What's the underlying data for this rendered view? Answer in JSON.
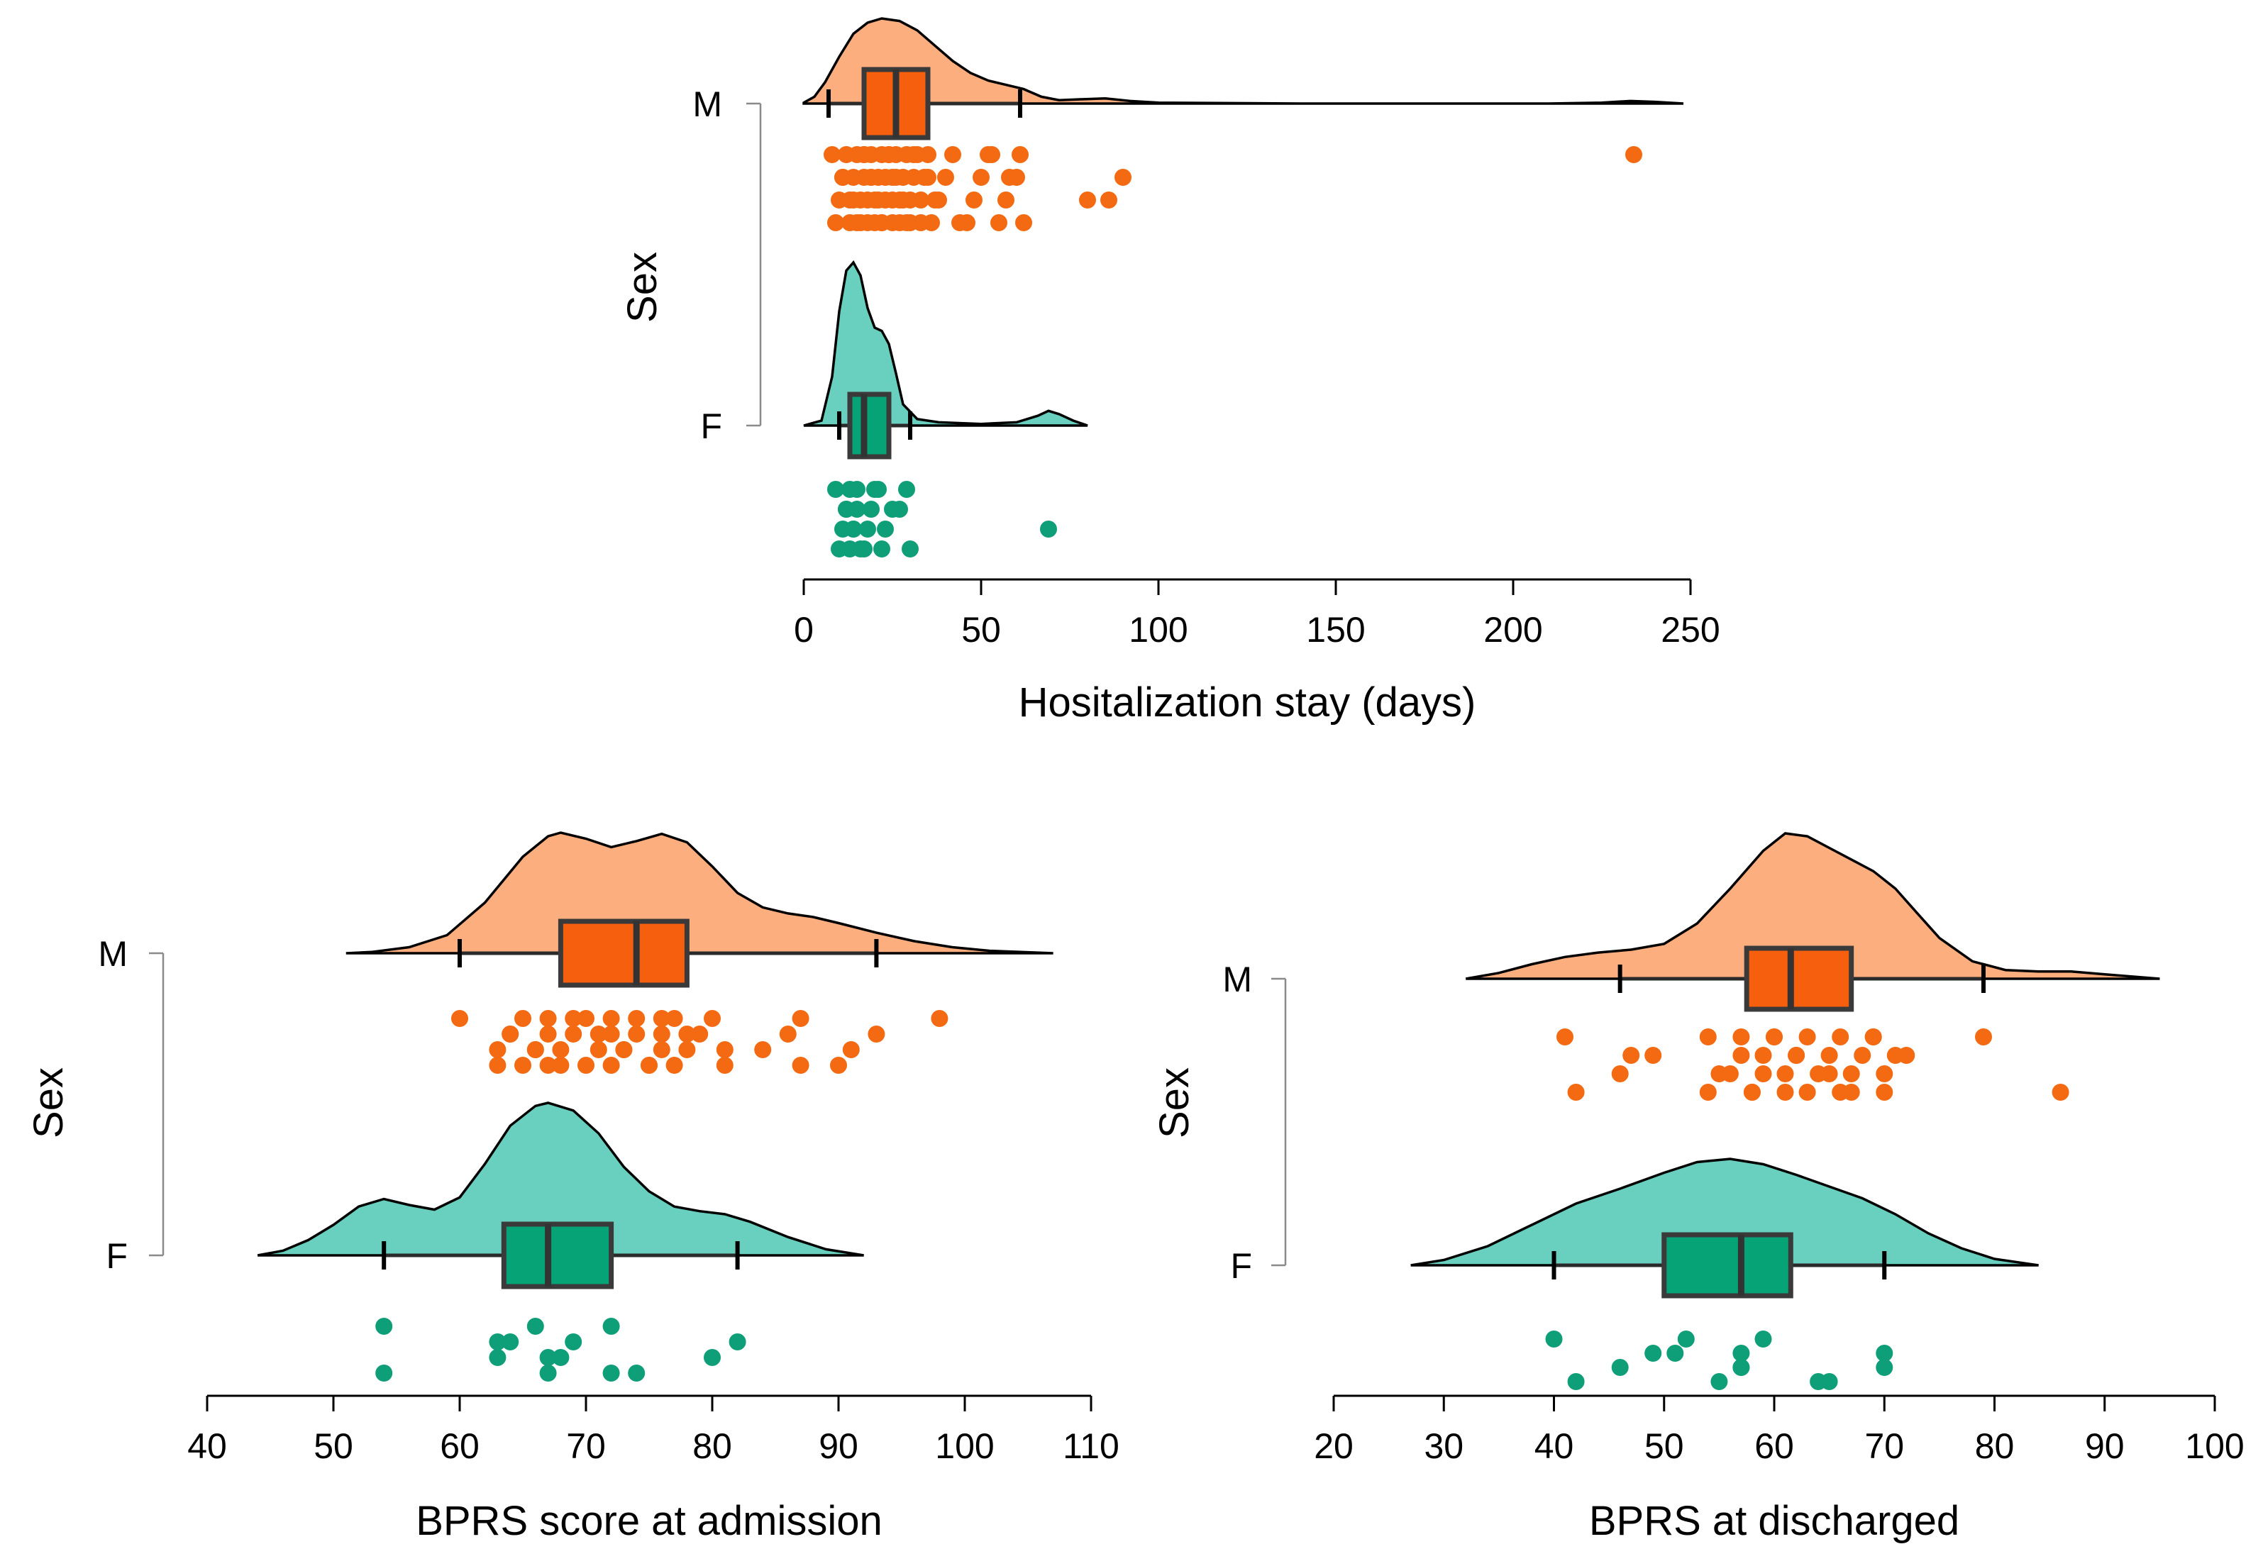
{
  "colors": {
    "M": {
      "density": "#FDAE7E",
      "box": "#F55F0E",
      "point": "#F46A12"
    },
    "F": {
      "density": "#69CFBE",
      "box": "#05A376",
      "point": "#0E9E78"
    }
  },
  "chart_data": [
    {
      "type": "raincloud",
      "id": "stay",
      "xlabel": "Hositalization stay (days)",
      "ylabel": "Sex",
      "xlim": [
        0,
        250
      ],
      "xticks": [
        0,
        50,
        100,
        150,
        200,
        250
      ],
      "categories": [
        "M",
        "F"
      ],
      "groups": [
        {
          "name": "M",
          "density_range": [
            0,
            248
          ],
          "density": [
            [
              0,
              0.01
            ],
            [
              3,
              0.08
            ],
            [
              6,
              0.25
            ],
            [
              10,
              0.55
            ],
            [
              14,
              0.82
            ],
            [
              18,
              0.95
            ],
            [
              22,
              1.0
            ],
            [
              27,
              0.97
            ],
            [
              32,
              0.86
            ],
            [
              37,
              0.68
            ],
            [
              42,
              0.5
            ],
            [
              47,
              0.36
            ],
            [
              52,
              0.27
            ],
            [
              57,
              0.22
            ],
            [
              62,
              0.17
            ],
            [
              67,
              0.08
            ],
            [
              72,
              0.04
            ],
            [
              78,
              0.05
            ],
            [
              85,
              0.06
            ],
            [
              92,
              0.03
            ],
            [
              100,
              0.01
            ],
            [
              140,
              0.0
            ],
            [
              210,
              0.0
            ],
            [
              225,
              0.01
            ],
            [
              233,
              0.03
            ],
            [
              240,
              0.02
            ],
            [
              248,
              0.0
            ]
          ],
          "box": {
            "q1": 17,
            "median": 26,
            "q3": 35,
            "whisker_low": 7,
            "whisker_high": 61
          },
          "points": [
            8,
            9,
            10,
            11,
            11,
            12,
            13,
            13,
            14,
            14,
            15,
            15,
            16,
            16,
            17,
            17,
            17,
            18,
            18,
            19,
            19,
            19,
            20,
            20,
            21,
            21,
            22,
            22,
            22,
            23,
            23,
            24,
            24,
            25,
            25,
            25,
            26,
            26,
            27,
            27,
            28,
            28,
            29,
            29,
            30,
            30,
            31,
            31,
            32,
            33,
            33,
            34,
            35,
            35,
            36,
            37,
            38,
            40,
            42,
            44,
            46,
            48,
            50,
            52,
            53,
            55,
            57,
            58,
            60,
            61,
            62,
            80,
            86,
            90,
            234
          ]
        },
        {
          "name": "F",
          "density_range": [
            0,
            80
          ],
          "density": [
            [
              0,
              0.0
            ],
            [
              5,
              0.03
            ],
            [
              8,
              0.3
            ],
            [
              10,
              0.7
            ],
            [
              12,
              0.95
            ],
            [
              14,
              1.0
            ],
            [
              16,
              0.92
            ],
            [
              18,
              0.72
            ],
            [
              20,
              0.6
            ],
            [
              22,
              0.58
            ],
            [
              24,
              0.5
            ],
            [
              26,
              0.32
            ],
            [
              28,
              0.13
            ],
            [
              32,
              0.04
            ],
            [
              38,
              0.02
            ],
            [
              50,
              0.01
            ],
            [
              60,
              0.02
            ],
            [
              66,
              0.06
            ],
            [
              69,
              0.09
            ],
            [
              72,
              0.07
            ],
            [
              76,
              0.03
            ],
            [
              80,
              0.0
            ]
          ],
          "box": {
            "q1": 13,
            "median": 17,
            "q3": 24,
            "whisker_low": 10,
            "whisker_high": 30
          },
          "points": [
            9,
            10,
            11,
            12,
            12,
            13,
            13,
            14,
            14,
            15,
            15,
            16,
            17,
            18,
            19,
            20,
            21,
            22,
            23,
            25,
            27,
            29,
            30,
            69
          ]
        }
      ]
    },
    {
      "type": "raincloud",
      "id": "admission",
      "xlabel": "BPRS score at admission",
      "ylabel": "Sex",
      "xlim": [
        40,
        110
      ],
      "xticks": [
        40,
        50,
        60,
        70,
        80,
        90,
        100,
        110
      ],
      "categories": [
        "M",
        "F"
      ],
      "groups": [
        {
          "name": "M",
          "density_range": [
            51,
            107
          ],
          "density": [
            [
              51,
              0.0
            ],
            [
              53,
              0.01
            ],
            [
              56,
              0.05
            ],
            [
              59,
              0.15
            ],
            [
              62,
              0.42
            ],
            [
              65,
              0.8
            ],
            [
              67,
              0.97
            ],
            [
              68,
              1.0
            ],
            [
              70,
              0.95
            ],
            [
              72,
              0.88
            ],
            [
              74,
              0.93
            ],
            [
              76,
              0.99
            ],
            [
              78,
              0.92
            ],
            [
              80,
              0.72
            ],
            [
              82,
              0.5
            ],
            [
              84,
              0.38
            ],
            [
              86,
              0.33
            ],
            [
              88,
              0.3
            ],
            [
              90,
              0.25
            ],
            [
              93,
              0.17
            ],
            [
              96,
              0.1
            ],
            [
              99,
              0.05
            ],
            [
              102,
              0.02
            ],
            [
              107,
              0.0
            ]
          ],
          "box": {
            "q1": 68,
            "median": 74,
            "q3": 78,
            "whisker_low": 60,
            "whisker_high": 93
          },
          "points": [
            60,
            63,
            63,
            64,
            64,
            65,
            65,
            66,
            66,
            67,
            67,
            67,
            68,
            68,
            69,
            69,
            70,
            70,
            71,
            71,
            72,
            72,
            72,
            73,
            73,
            74,
            74,
            75,
            75,
            76,
            76,
            76,
            77,
            77,
            78,
            78,
            79,
            80,
            81,
            81,
            84,
            86,
            87,
            87,
            90,
            91,
            93,
            98
          ]
        },
        {
          "name": "F",
          "density_range": [
            44,
            92
          ],
          "density": [
            [
              44,
              0.0
            ],
            [
              46,
              0.03
            ],
            [
              48,
              0.1
            ],
            [
              50,
              0.2
            ],
            [
              52,
              0.32
            ],
            [
              54,
              0.37
            ],
            [
              56,
              0.33
            ],
            [
              58,
              0.3
            ],
            [
              60,
              0.38
            ],
            [
              62,
              0.6
            ],
            [
              64,
              0.85
            ],
            [
              66,
              0.98
            ],
            [
              67,
              1.0
            ],
            [
              69,
              0.95
            ],
            [
              71,
              0.8
            ],
            [
              73,
              0.58
            ],
            [
              75,
              0.42
            ],
            [
              77,
              0.32
            ],
            [
              79,
              0.29
            ],
            [
              81,
              0.27
            ],
            [
              83,
              0.22
            ],
            [
              86,
              0.12
            ],
            [
              89,
              0.04
            ],
            [
              92,
              0.0
            ]
          ],
          "box": {
            "q1": 63.5,
            "median": 67,
            "q3": 72,
            "whisker_low": 54,
            "whisker_high": 82
          },
          "points": [
            54,
            54,
            63,
            63,
            64,
            66,
            67,
            67,
            68,
            69,
            72,
            72,
            74,
            80,
            82
          ]
        }
      ]
    },
    {
      "type": "raincloud",
      "id": "discharge",
      "xlabel": "BPRS at discharged",
      "ylabel": "Sex",
      "xlim": [
        20,
        100
      ],
      "xticks": [
        20,
        30,
        40,
        50,
        60,
        70,
        80,
        90,
        100
      ],
      "categories": [
        "M",
        "F"
      ],
      "groups": [
        {
          "name": "M",
          "density_range": [
            32,
            95
          ],
          "density": [
            [
              32,
              0.0
            ],
            [
              35,
              0.04
            ],
            [
              38,
              0.1
            ],
            [
              41,
              0.15
            ],
            [
              44,
              0.18
            ],
            [
              47,
              0.2
            ],
            [
              50,
              0.24
            ],
            [
              53,
              0.38
            ],
            [
              56,
              0.62
            ],
            [
              59,
              0.88
            ],
            [
              61,
              1.0
            ],
            [
              63,
              0.98
            ],
            [
              65,
              0.9
            ],
            [
              67,
              0.82
            ],
            [
              69,
              0.74
            ],
            [
              71,
              0.62
            ],
            [
              73,
              0.45
            ],
            [
              75,
              0.28
            ],
            [
              78,
              0.12
            ],
            [
              81,
              0.06
            ],
            [
              84,
              0.05
            ],
            [
              87,
              0.05
            ],
            [
              90,
              0.03
            ],
            [
              95,
              0.0
            ]
          ],
          "box": {
            "q1": 57.5,
            "median": 61.5,
            "q3": 67,
            "whisker_low": 46,
            "whisker_high": 79
          },
          "points": [
            41,
            42,
            46,
            47,
            49,
            54,
            54,
            55,
            56,
            57,
            57,
            58,
            58,
            59,
            59,
            60,
            60,
            61,
            61,
            62,
            62,
            63,
            63,
            64,
            65,
            65,
            66,
            66,
            67,
            67,
            68,
            69,
            69,
            70,
            70,
            71,
            72,
            79,
            86
          ]
        },
        {
          "name": "F",
          "density_range": [
            27,
            84
          ],
          "density": [
            [
              27,
              0.0
            ],
            [
              30,
              0.05
            ],
            [
              34,
              0.18
            ],
            [
              38,
              0.38
            ],
            [
              42,
              0.58
            ],
            [
              46,
              0.72
            ],
            [
              50,
              0.87
            ],
            [
              53,
              0.97
            ],
            [
              56,
              1.0
            ],
            [
              59,
              0.95
            ],
            [
              62,
              0.85
            ],
            [
              65,
              0.74
            ],
            [
              68,
              0.63
            ],
            [
              71,
              0.48
            ],
            [
              74,
              0.3
            ],
            [
              77,
              0.16
            ],
            [
              80,
              0.06
            ],
            [
              84,
              0.0
            ]
          ],
          "box": {
            "q1": 50,
            "median": 57,
            "q3": 61.5,
            "whisker_low": 40,
            "whisker_high": 70
          },
          "points": [
            40,
            42,
            46,
            49,
            51,
            52,
            55,
            57,
            57,
            57,
            59,
            64,
            65,
            70,
            70
          ]
        }
      ]
    }
  ]
}
